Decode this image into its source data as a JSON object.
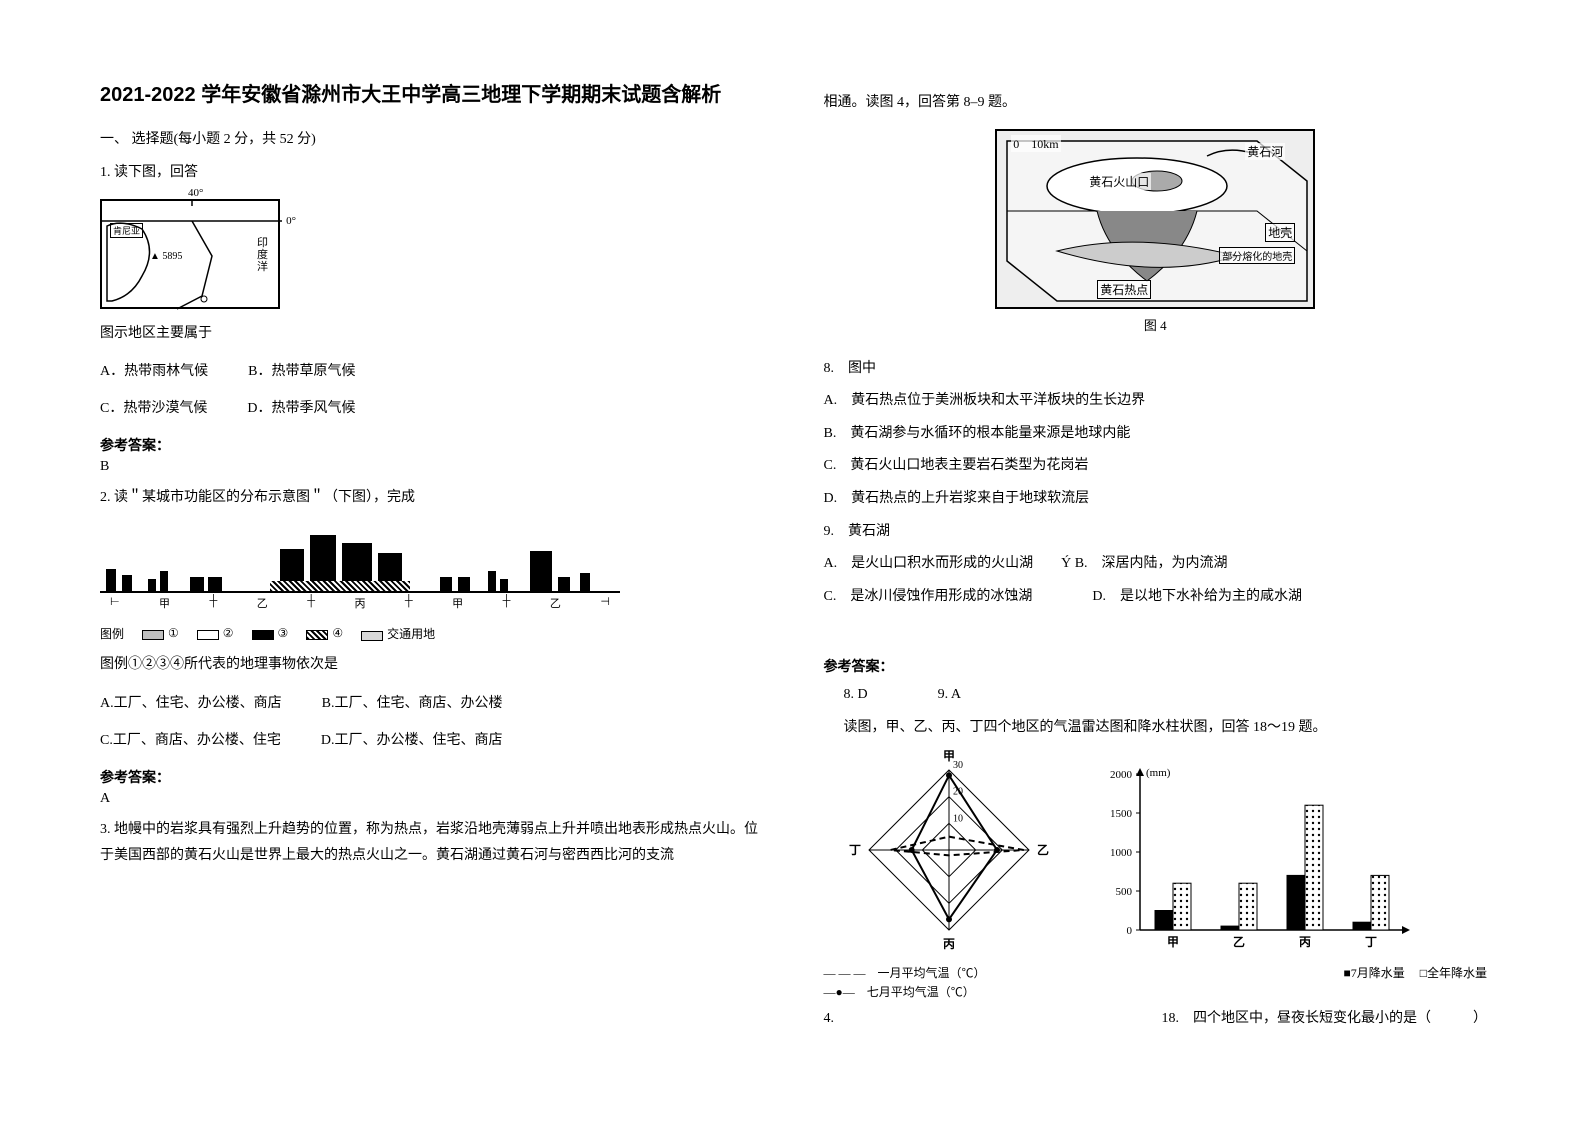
{
  "title": "2021-2022 学年安徽省滁州市大王中学高三地理下学期期末试题含解析",
  "section1": "一、 选择题(每小题 2 分，共 52 分)",
  "q1": {
    "stem": "1. 读下图，回答",
    "map": {
      "lon": "40°",
      "lat": "0°",
      "peak": "▲ 5895",
      "place1": "肯尼亚",
      "ocean": "印\n度\n洋"
    },
    "prompt": "图示地区主要属于",
    "opts": {
      "A": "A．热带雨林气候",
      "B": "B．热带草原气候",
      "C": "C．热带沙漠气候",
      "D": "D．热带季风气候"
    },
    "ans_label": "参考答案：",
    "ans": "B"
  },
  "q2": {
    "stem": "2. 读＂某城市功能区的分布示意图＂（下图），完成",
    "skyline": {
      "labels": [
        "甲",
        "乙",
        "丙",
        "甲",
        "乙"
      ],
      "legend_label": "图例",
      "l1": "①",
      "l2": "②",
      "l3": "③",
      "l4": "④",
      "l5": "交通用地"
    },
    "prompt": "图例①②③④所代表的地理事物依次是",
    "opts": {
      "A": "A.工厂、住宅、办公楼、商店",
      "B": "B.工厂、住宅、商店、办公楼",
      "C": "C.工厂、商店、办公楼、住宅",
      "D": "D.工厂、办公楼、住宅、商店"
    },
    "ans_label": "参考答案：",
    "ans": "A"
  },
  "q3": {
    "stem": "3. 地幔中的岩浆具有强烈上升趋势的位置，称为热点，岩浆沿地壳薄弱点上升并喷出地表形成热点火山。位于美国西部的黄石火山是世界上最大的热点火山之一。黄石湖通过黄石河与密西西比河的支流",
    "cont": "相通。读图 4，回答第 8–9 题。",
    "fig": {
      "scale": "0　10km",
      "river": "黄石河",
      "crater": "黄石火山口",
      "crust": "地壳",
      "partial": "部分熔化的地壳",
      "hotspot": "黄石热点",
      "caption": "图 4"
    }
  },
  "q8": {
    "stem": "8.　图中",
    "A": "A.　黄石热点位于美洲板块和太平洋板块的生长边界",
    "B": "B.　黄石湖参与水循环的根本能量来源是地球内能",
    "C": "C.　黄石火山口地表主要岩石类型为花岗岩",
    "D": "D.　黄石热点的上升岩浆来自于地球软流层"
  },
  "q9": {
    "stem": "9.　黄石湖",
    "A": "A.　是火山口积水而形成的火山湖　　Ý B.　深居内陆，为内流湖",
    "C": "C.　是冰川侵蚀作用形成的冰蚀湖",
    "D": "D.　是以地下水补给为主的咸水湖"
  },
  "q89_ans": {
    "label": "参考答案：",
    "a8": "8. D",
    "a9": "9. A"
  },
  "q4": {
    "stem_prefix": "4.",
    "intro": "读图，甲、乙、丙、丁四个地区的气温雷达图和降水柱状图，回答 18～19 题。",
    "radar": {
      "axes": [
        "甲",
        "乙",
        "丙",
        "丁"
      ],
      "rings": [
        10,
        20,
        30
      ],
      "jan": [
        5,
        28,
        2,
        22
      ],
      "jul": [
        28,
        18,
        26,
        14
      ],
      "legend_jan": "一月平均气温（℃）",
      "legend_jul": "七月平均气温（℃）",
      "legend_dash": "— — —",
      "legend_solid": "—●—"
    },
    "bars": {
      "ylabel": "(mm)",
      "ticks": [
        0,
        500,
        1000,
        1500,
        2000
      ],
      "cats": [
        "甲",
        "乙",
        "丙",
        "丁"
      ],
      "jul_rain": [
        250,
        50,
        700,
        100
      ],
      "year_rain": [
        600,
        600,
        1600,
        700
      ],
      "legend_jul": "■7月降水量",
      "legend_year": "□全年降水量"
    },
    "q18": "18.　四个地区中，昼夜长短变化最小的是（　　　）"
  },
  "colors": {
    "black": "#000000",
    "grey": "#bfbfbf",
    "white": "#ffffff",
    "dots": "#d9d9d9"
  }
}
